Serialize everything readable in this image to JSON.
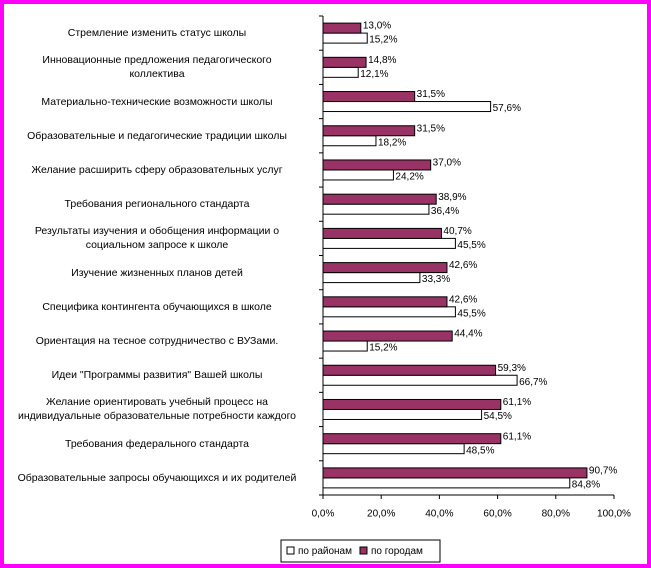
{
  "chart_data": {
    "type": "bar",
    "orientation": "horizontal",
    "categories": [
      "Стремление изменить статус школы",
      "Инновационные предложения педагогического\nколлектива",
      "Материально-технические возможности школы",
      "Образовательные и педагогические традиции школы",
      "Желание расширить сферу образовательных услуг",
      "Требования регионального стандарта",
      "Результаты изучения и обобщения информации о\nсоциальном запросе к школе",
      "Изучение жизненных планов детей",
      "Специфика контингента обучающихся в школе",
      "Ориентация на тесное сотрудничество с ВУЗами.",
      "Идеи \"Программы развития\" Вашей школы",
      "Желание ориентировать учебный процесс на\nиндивидуальные образовательные потребности каждого",
      "Требования федерального стандарта",
      "Образовательные запросы обучающихся и их родителей"
    ],
    "series": [
      {
        "name": "по районам",
        "color": "#ffffff",
        "values": [
          15.2,
          12.1,
          57.6,
          18.2,
          24.2,
          36.4,
          45.5,
          33.3,
          45.5,
          15.2,
          66.7,
          54.5,
          48.5,
          84.8
        ],
        "value_labels": [
          "15,2%",
          "12,1%",
          "57,6%",
          "18,2%",
          "24,2%",
          "36,4%",
          "45,5%",
          "33,3%",
          "45,5%",
          "15,2%",
          "66,7%",
          "54,5%",
          "48,5%",
          "84,8%"
        ]
      },
      {
        "name": "по городам",
        "color": "#993366",
        "values": [
          13.0,
          14.8,
          31.5,
          31.5,
          37.0,
          38.9,
          40.7,
          42.6,
          42.6,
          44.4,
          59.3,
          61.1,
          61.1,
          90.7
        ],
        "value_labels": [
          "13,0%",
          "14,8%",
          "31,5%",
          "31,5%",
          "37,0%",
          "38,9%",
          "40,7%",
          "42,6%",
          "42,6%",
          "44,4%",
          "59,3%",
          "61,1%",
          "61,1%",
          "90,7%"
        ]
      }
    ],
    "xlim": [
      0,
      100
    ],
    "xticks": [
      {
        "value": 0,
        "label": "0,0%"
      },
      {
        "value": 20,
        "label": "20,0%"
      },
      {
        "value": 40,
        "label": "40,0%"
      },
      {
        "value": 60,
        "label": "60,0%"
      },
      {
        "value": 80,
        "label": "80,0%"
      },
      {
        "value": 100,
        "label": "100,0%"
      }
    ],
    "legend": "bottom"
  }
}
